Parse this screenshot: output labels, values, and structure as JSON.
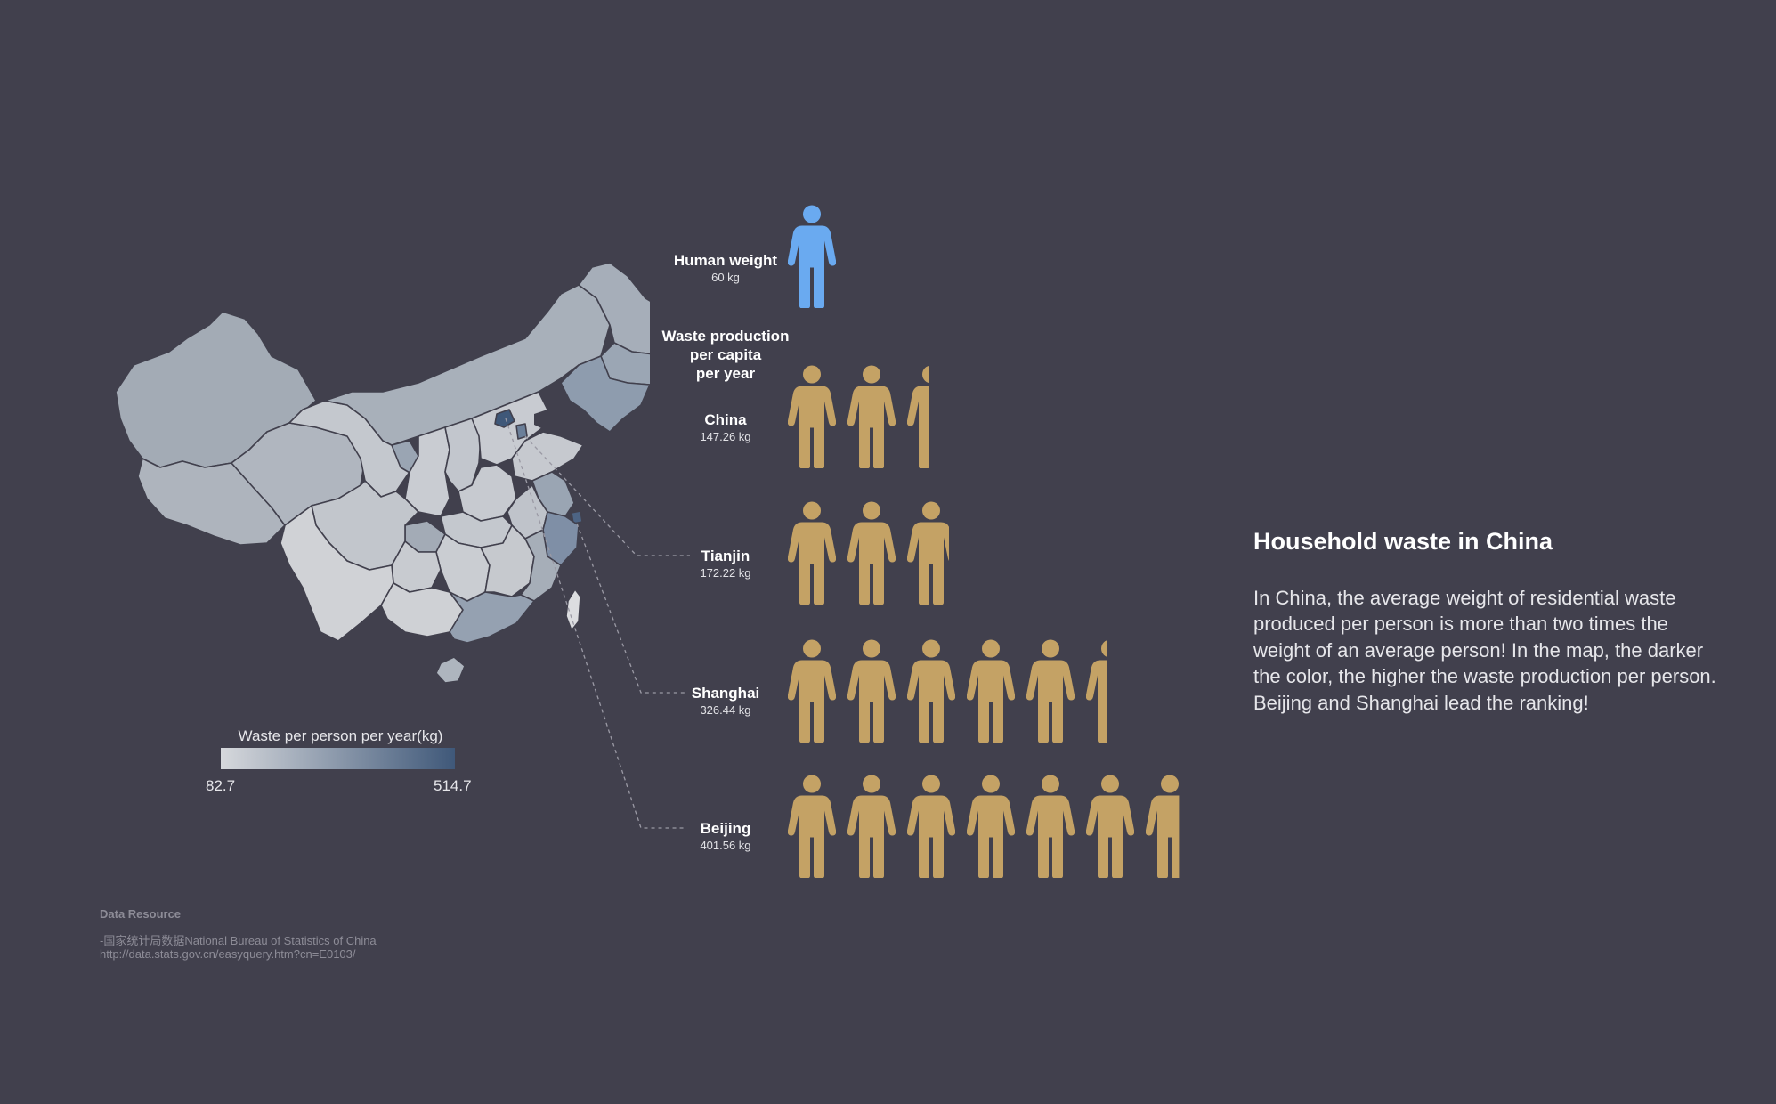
{
  "human": {
    "label": "Human weight",
    "value": "60 kg",
    "kg": 60,
    "color": "#6aaaf0"
  },
  "waste_header": [
    "Waste production",
    "per capita",
    "per year"
  ],
  "legend": {
    "title": "Waste per person per year(kg)",
    "min": "82.7",
    "max": "514.7",
    "min_value": 82.7,
    "max_value": 514.7,
    "color_low": "#d6d8dc",
    "color_high": "#3f5879"
  },
  "person_color": "#c4a265",
  "chart_data": {
    "type": "pictograph",
    "unit_kg_per_icon": 60,
    "rows": [
      {
        "name": "China",
        "value_label": "147.26 kg",
        "value": 147.26
      },
      {
        "name": "Tianjin",
        "value_label": "172.22 kg",
        "value": 172.22
      },
      {
        "name": "Shanghai",
        "value_label": "326.44 kg",
        "value": 326.44
      },
      {
        "name": "Beijing",
        "value_label": "401.56 kg",
        "value": 401.56
      }
    ]
  },
  "title": "Household waste in China",
  "description": "In China, the average weight of residential waste produced per person is more than two times the weight of an average person! In the map, the darker the color, the higher the waste production per person. Beijing and Shanghai lead the ranking!",
  "source": {
    "title": "Data Resource",
    "line1": "-国家统计局数据National Bureau of Statistics of China",
    "line2": "http://data.stats.gov.cn/easyquery.htm?cn=E0103/"
  }
}
